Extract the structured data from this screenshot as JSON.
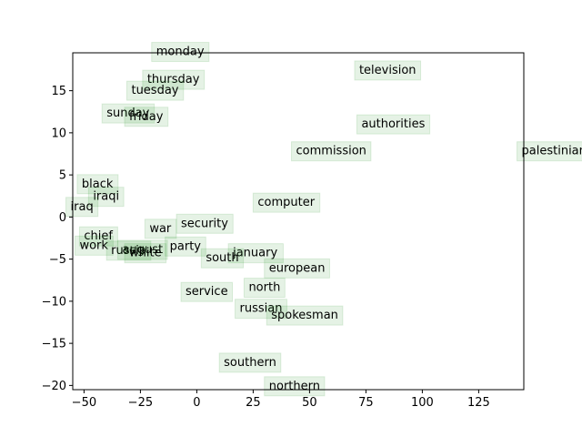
{
  "chart_data": {
    "type": "scatter",
    "xlim": [
      -55,
      145
    ],
    "ylim": [
      -20.5,
      19.5
    ],
    "x_ticks": [
      -50,
      -25,
      0,
      25,
      50,
      75,
      100,
      125
    ],
    "y_ticks": [
      -20,
      -15,
      -10,
      -5,
      0,
      5,
      10,
      15
    ],
    "grid": false,
    "title": "",
    "xlabel": "",
    "ylabel": "",
    "points": [
      {
        "label": "monday",
        "x": -18,
        "y": 19.6
      },
      {
        "label": "television",
        "x": 72,
        "y": 17.4
      },
      {
        "label": "thursday",
        "x": -22,
        "y": 16.3
      },
      {
        "label": "tuesday",
        "x": -29,
        "y": 15.0
      },
      {
        "label": "sunday",
        "x": -40,
        "y": 12.3
      },
      {
        "label": "friday",
        "x": -30,
        "y": 11.9
      },
      {
        "label": "authorities",
        "x": 73,
        "y": 11.0
      },
      {
        "label": "commission",
        "x": 44,
        "y": 7.8
      },
      {
        "label": "palestinian",
        "x": 144,
        "y": 7.8
      },
      {
        "label": "black",
        "x": -51,
        "y": 3.9
      },
      {
        "label": "iraqi",
        "x": -46,
        "y": 2.4
      },
      {
        "label": "computer",
        "x": 27,
        "y": 1.7
      },
      {
        "label": "iraq",
        "x": -56,
        "y": 1.2
      },
      {
        "label": "war",
        "x": -21,
        "y": -1.4
      },
      {
        "label": "security",
        "x": -7,
        "y": -0.8
      },
      {
        "label": "chief",
        "x": -50,
        "y": -2.3
      },
      {
        "label": "work",
        "x": -52,
        "y": -3.4
      },
      {
        "label": "party",
        "x": -12,
        "y": -3.5
      },
      {
        "label": "russia",
        "x": -38,
        "y": -4.0
      },
      {
        "label": "august",
        "x": -33,
        "y": -3.9
      },
      {
        "label": "white",
        "x": -30,
        "y": -4.3
      },
      {
        "label": "january",
        "x": 16,
        "y": -4.3
      },
      {
        "label": "south",
        "x": 4,
        "y": -4.9
      },
      {
        "label": "european",
        "x": 32,
        "y": -6.1
      },
      {
        "label": "north",
        "x": 23,
        "y": -8.4
      },
      {
        "label": "service",
        "x": -5,
        "y": -8.9
      },
      {
        "label": "russian",
        "x": 19,
        "y": -10.9
      },
      {
        "label": "spokesman",
        "x": 33,
        "y": -11.7
      },
      {
        "label": "southern",
        "x": 12,
        "y": -17.3
      },
      {
        "label": "northern",
        "x": 32,
        "y": -20.1
      }
    ]
  }
}
